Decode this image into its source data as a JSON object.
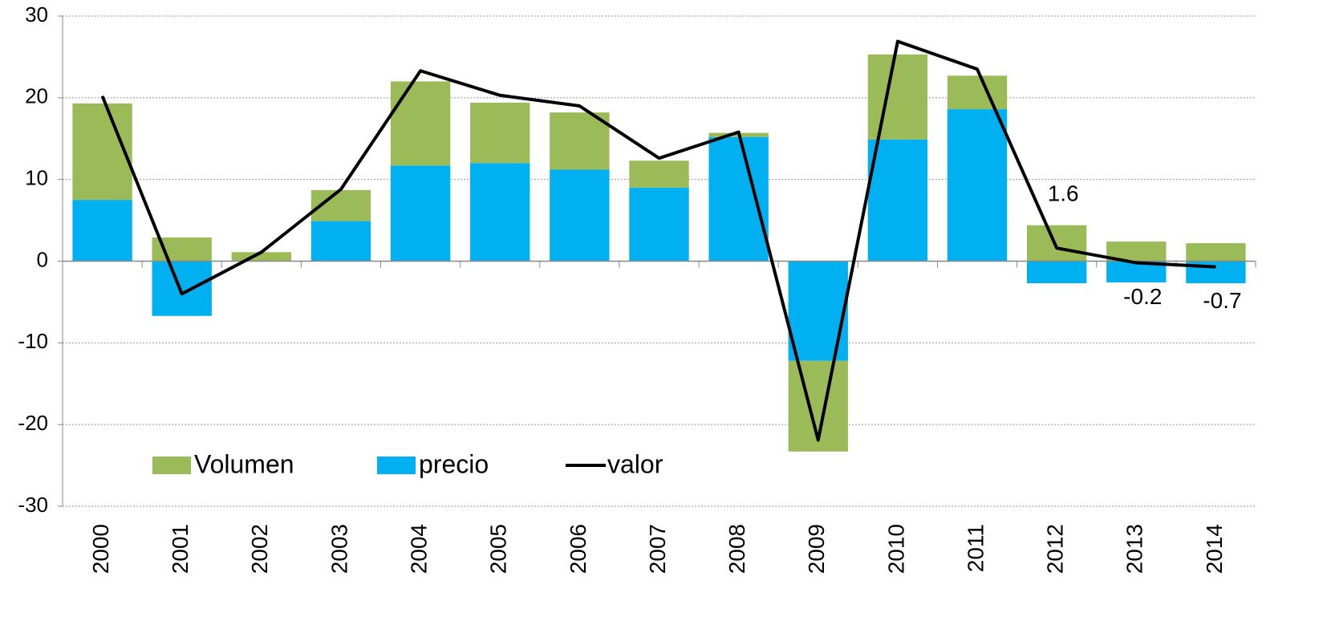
{
  "chart_data": {
    "type": "bar",
    "categories": [
      "2000",
      "2001",
      "2002",
      "2003",
      "2004",
      "2005",
      "2006",
      "2007",
      "2008",
      "2009",
      "2010",
      "2011",
      "2012",
      "2013",
      "2014"
    ],
    "series": [
      {
        "name": "Volumen",
        "color": "#9bbb59",
        "values": [
          11.8,
          2.9,
          1.1,
          3.8,
          10.3,
          7.4,
          7.0,
          3.3,
          0.5,
          -11.1,
          10.4,
          4.1,
          4.4,
          2.4,
          2.2
        ]
      },
      {
        "name": "precio",
        "color": "#00b0f0",
        "values": [
          7.5,
          -6.7,
          0,
          4.9,
          11.7,
          12.0,
          11.2,
          9.0,
          15.2,
          -12.2,
          14.9,
          18.6,
          -2.7,
          -2.6,
          -2.7
        ]
      },
      {
        "name": "valor",
        "type": "line",
        "color": "#000000",
        "values": [
          20.2,
          -4.0,
          1.1,
          8.8,
          23.3,
          20.3,
          19.0,
          12.6,
          15.8,
          -21.9,
          26.9,
          23.5,
          1.6,
          -0.2,
          -0.7
        ],
        "value_labels": [
          null,
          null,
          null,
          null,
          null,
          null,
          null,
          null,
          null,
          null,
          null,
          null,
          "1.6",
          "-0.2",
          "-0.7"
        ]
      }
    ],
    "stacked": true,
    "ylim": [
      -30,
      30
    ],
    "yticks": [
      -30,
      -20,
      -10,
      0,
      10,
      20,
      30
    ],
    "grid": true,
    "legend": "lower left"
  }
}
